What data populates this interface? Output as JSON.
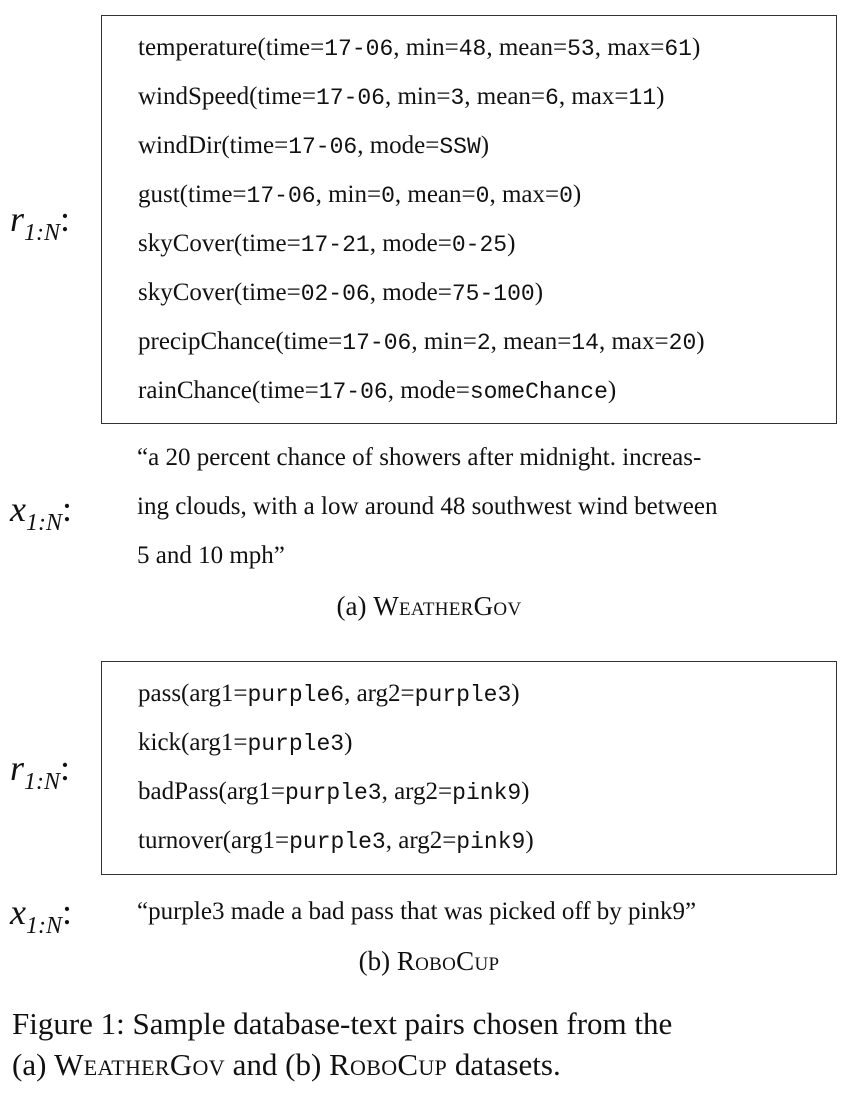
{
  "panel_a": {
    "records_label": {
      "var": "r",
      "sub": "1:N",
      "colon": ":"
    },
    "records": [
      {
        "seg": [
          [
            "temperature(time=",
            "t"
          ],
          [
            "17-06",
            "m"
          ],
          [
            ", min=",
            "t"
          ],
          [
            "48",
            "m"
          ],
          [
            ", mean=",
            "t"
          ],
          [
            "53",
            "m"
          ],
          [
            ", max=",
            "t"
          ],
          [
            "61",
            "m"
          ],
          [
            ")",
            "t"
          ]
        ]
      },
      {
        "seg": [
          [
            "windSpeed(time=",
            "t"
          ],
          [
            "17-06",
            "m"
          ],
          [
            ", min=",
            "t"
          ],
          [
            "3",
            "m"
          ],
          [
            ", mean=",
            "t"
          ],
          [
            "6",
            "m"
          ],
          [
            ", max=",
            "t"
          ],
          [
            "11",
            "m"
          ],
          [
            ")",
            "t"
          ]
        ]
      },
      {
        "seg": [
          [
            "windDir(time=",
            "t"
          ],
          [
            "17-06",
            "m"
          ],
          [
            ", mode=",
            "t"
          ],
          [
            "SSW",
            "m"
          ],
          [
            ")",
            "t"
          ]
        ]
      },
      {
        "seg": [
          [
            "gust(time=",
            "t"
          ],
          [
            "17-06",
            "m"
          ],
          [
            ", min=",
            "t"
          ],
          [
            "0",
            "m"
          ],
          [
            ", mean=",
            "t"
          ],
          [
            "0",
            "m"
          ],
          [
            ", max=",
            "t"
          ],
          [
            "0",
            "m"
          ],
          [
            ")",
            "t"
          ]
        ]
      },
      {
        "seg": [
          [
            "skyCover(time=",
            "t"
          ],
          [
            "17-21",
            "m"
          ],
          [
            ", mode=",
            "t"
          ],
          [
            "0-25",
            "m"
          ],
          [
            ")",
            "t"
          ]
        ]
      },
      {
        "seg": [
          [
            "skyCover(time=",
            "t"
          ],
          [
            "02-06",
            "m"
          ],
          [
            ", mode=",
            "t"
          ],
          [
            "75-100",
            "m"
          ],
          [
            ")",
            "t"
          ]
        ]
      },
      {
        "seg": [
          [
            "precipChance(time=",
            "t"
          ],
          [
            "17-06",
            "m"
          ],
          [
            ", min=",
            "t"
          ],
          [
            "2",
            "m"
          ],
          [
            ", mean=",
            "t"
          ],
          [
            "14",
            "m"
          ],
          [
            ", max=",
            "t"
          ],
          [
            "20",
            "m"
          ],
          [
            ")",
            "t"
          ]
        ]
      },
      {
        "seg": [
          [
            "rainChance(time=",
            "t"
          ],
          [
            "17-06",
            "m"
          ],
          [
            ", mode=",
            "t"
          ],
          [
            "someChance",
            "m"
          ],
          [
            ")",
            "t"
          ]
        ]
      }
    ],
    "text_label": {
      "var": "x",
      "sub": "1:N",
      "colon": ":"
    },
    "text_lines": [
      "“a 20 percent chance of showers after midnight.  increas-",
      "ing clouds, with a low around 48 southwest wind between",
      "5 and 10 mph”"
    ],
    "caption_prefix": "(a) ",
    "caption_name": "WeatherGov"
  },
  "panel_b": {
    "records_label": {
      "var": "r",
      "sub": "1:N",
      "colon": ":"
    },
    "records": [
      {
        "seg": [
          [
            "pass(arg1=",
            "t"
          ],
          [
            "purple6",
            "m"
          ],
          [
            ", arg2=",
            "t"
          ],
          [
            "purple3",
            "m"
          ],
          [
            ")",
            "t"
          ]
        ]
      },
      {
        "seg": [
          [
            "kick(arg1=",
            "t"
          ],
          [
            "purple3",
            "m"
          ],
          [
            ")",
            "t"
          ]
        ]
      },
      {
        "seg": [
          [
            "badPass(arg1=",
            "t"
          ],
          [
            "purple3",
            "m"
          ],
          [
            ", arg2=",
            "t"
          ],
          [
            "pink9",
            "m"
          ],
          [
            ")",
            "t"
          ]
        ]
      },
      {
        "seg": [
          [
            "turnover(arg1=",
            "t"
          ],
          [
            "purple3",
            "m"
          ],
          [
            ", arg2=",
            "t"
          ],
          [
            "pink9",
            "m"
          ],
          [
            ")",
            "t"
          ]
        ]
      }
    ],
    "text_label": {
      "var": "x",
      "sub": "1:N",
      "colon": ":"
    },
    "text_lines": [
      "“purple3 made a bad pass that was picked off by pink9”"
    ],
    "caption_prefix": "(b) ",
    "caption_name": "RoboCup"
  },
  "figure_caption": {
    "line1": "Figure 1:  Sample database-text pairs chosen from the",
    "line2_a": "(a) ",
    "line2_name_a": "WeatherGov",
    "line2_mid": " and (b) ",
    "line2_name_b": "RoboCup",
    "line2_end": " datasets."
  }
}
